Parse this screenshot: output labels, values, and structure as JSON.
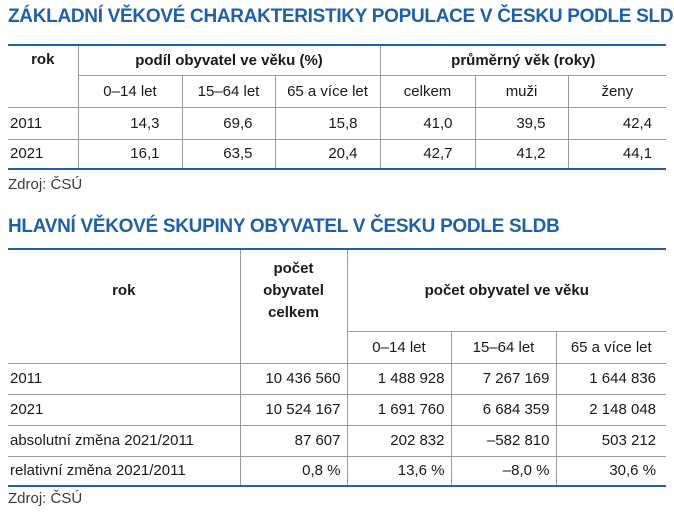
{
  "table1": {
    "title": "ZÁKLADNÍ VĚKOVÉ CHARAKTERISTIKY POPULACE V ČESKU PODLE SLDB",
    "col_rok": "rok",
    "group_share": "podíl obyvatel ve věku (%)",
    "group_age": "průměrný věk (roky)",
    "sub": [
      "0–14 let",
      "15–64 let",
      "65 a více let",
      "celkem",
      "muži",
      "ženy"
    ],
    "rows": [
      {
        "rok": "2011",
        "v": [
          "14,3",
          "69,6",
          "15,8",
          "41,0",
          "39,5",
          "42,4"
        ]
      },
      {
        "rok": "2021",
        "v": [
          "16,1",
          "63,5",
          "20,4",
          "42,7",
          "41,2",
          "44,1"
        ]
      }
    ],
    "source": "Zdroj: ČSÚ"
  },
  "table2": {
    "title": "HLAVNÍ VĚKOVÉ SKUPINY OBYVATEL V ČESKU PODLE SLDB",
    "col_rok": "rok",
    "col_total_l1": "počet",
    "col_total_l2": "obyvatel",
    "col_total_l3": "celkem",
    "group_age": "počet obyvatel ve věku",
    "sub": [
      "0–14 let",
      "15–64 let",
      "65 a více let"
    ],
    "rows": [
      {
        "label": "2011",
        "v": [
          "10 436 560",
          "1 488 928",
          "7 267 169",
          "1 644 836"
        ]
      },
      {
        "label": "2021",
        "v": [
          "10 524 167",
          "1 691 760",
          "6 684 359",
          "2 148 048"
        ]
      },
      {
        "label": "absolutní změna 2021/2011",
        "v": [
          "87 607",
          "202 832",
          "–582 810",
          "503 212"
        ]
      },
      {
        "label": "relativní změna 2021/2011",
        "v": [
          "0,8 %",
          "13,6 %",
          "–8,0 %",
          "30,6 %"
        ]
      }
    ],
    "source": "Zdroj: ČSÚ"
  }
}
